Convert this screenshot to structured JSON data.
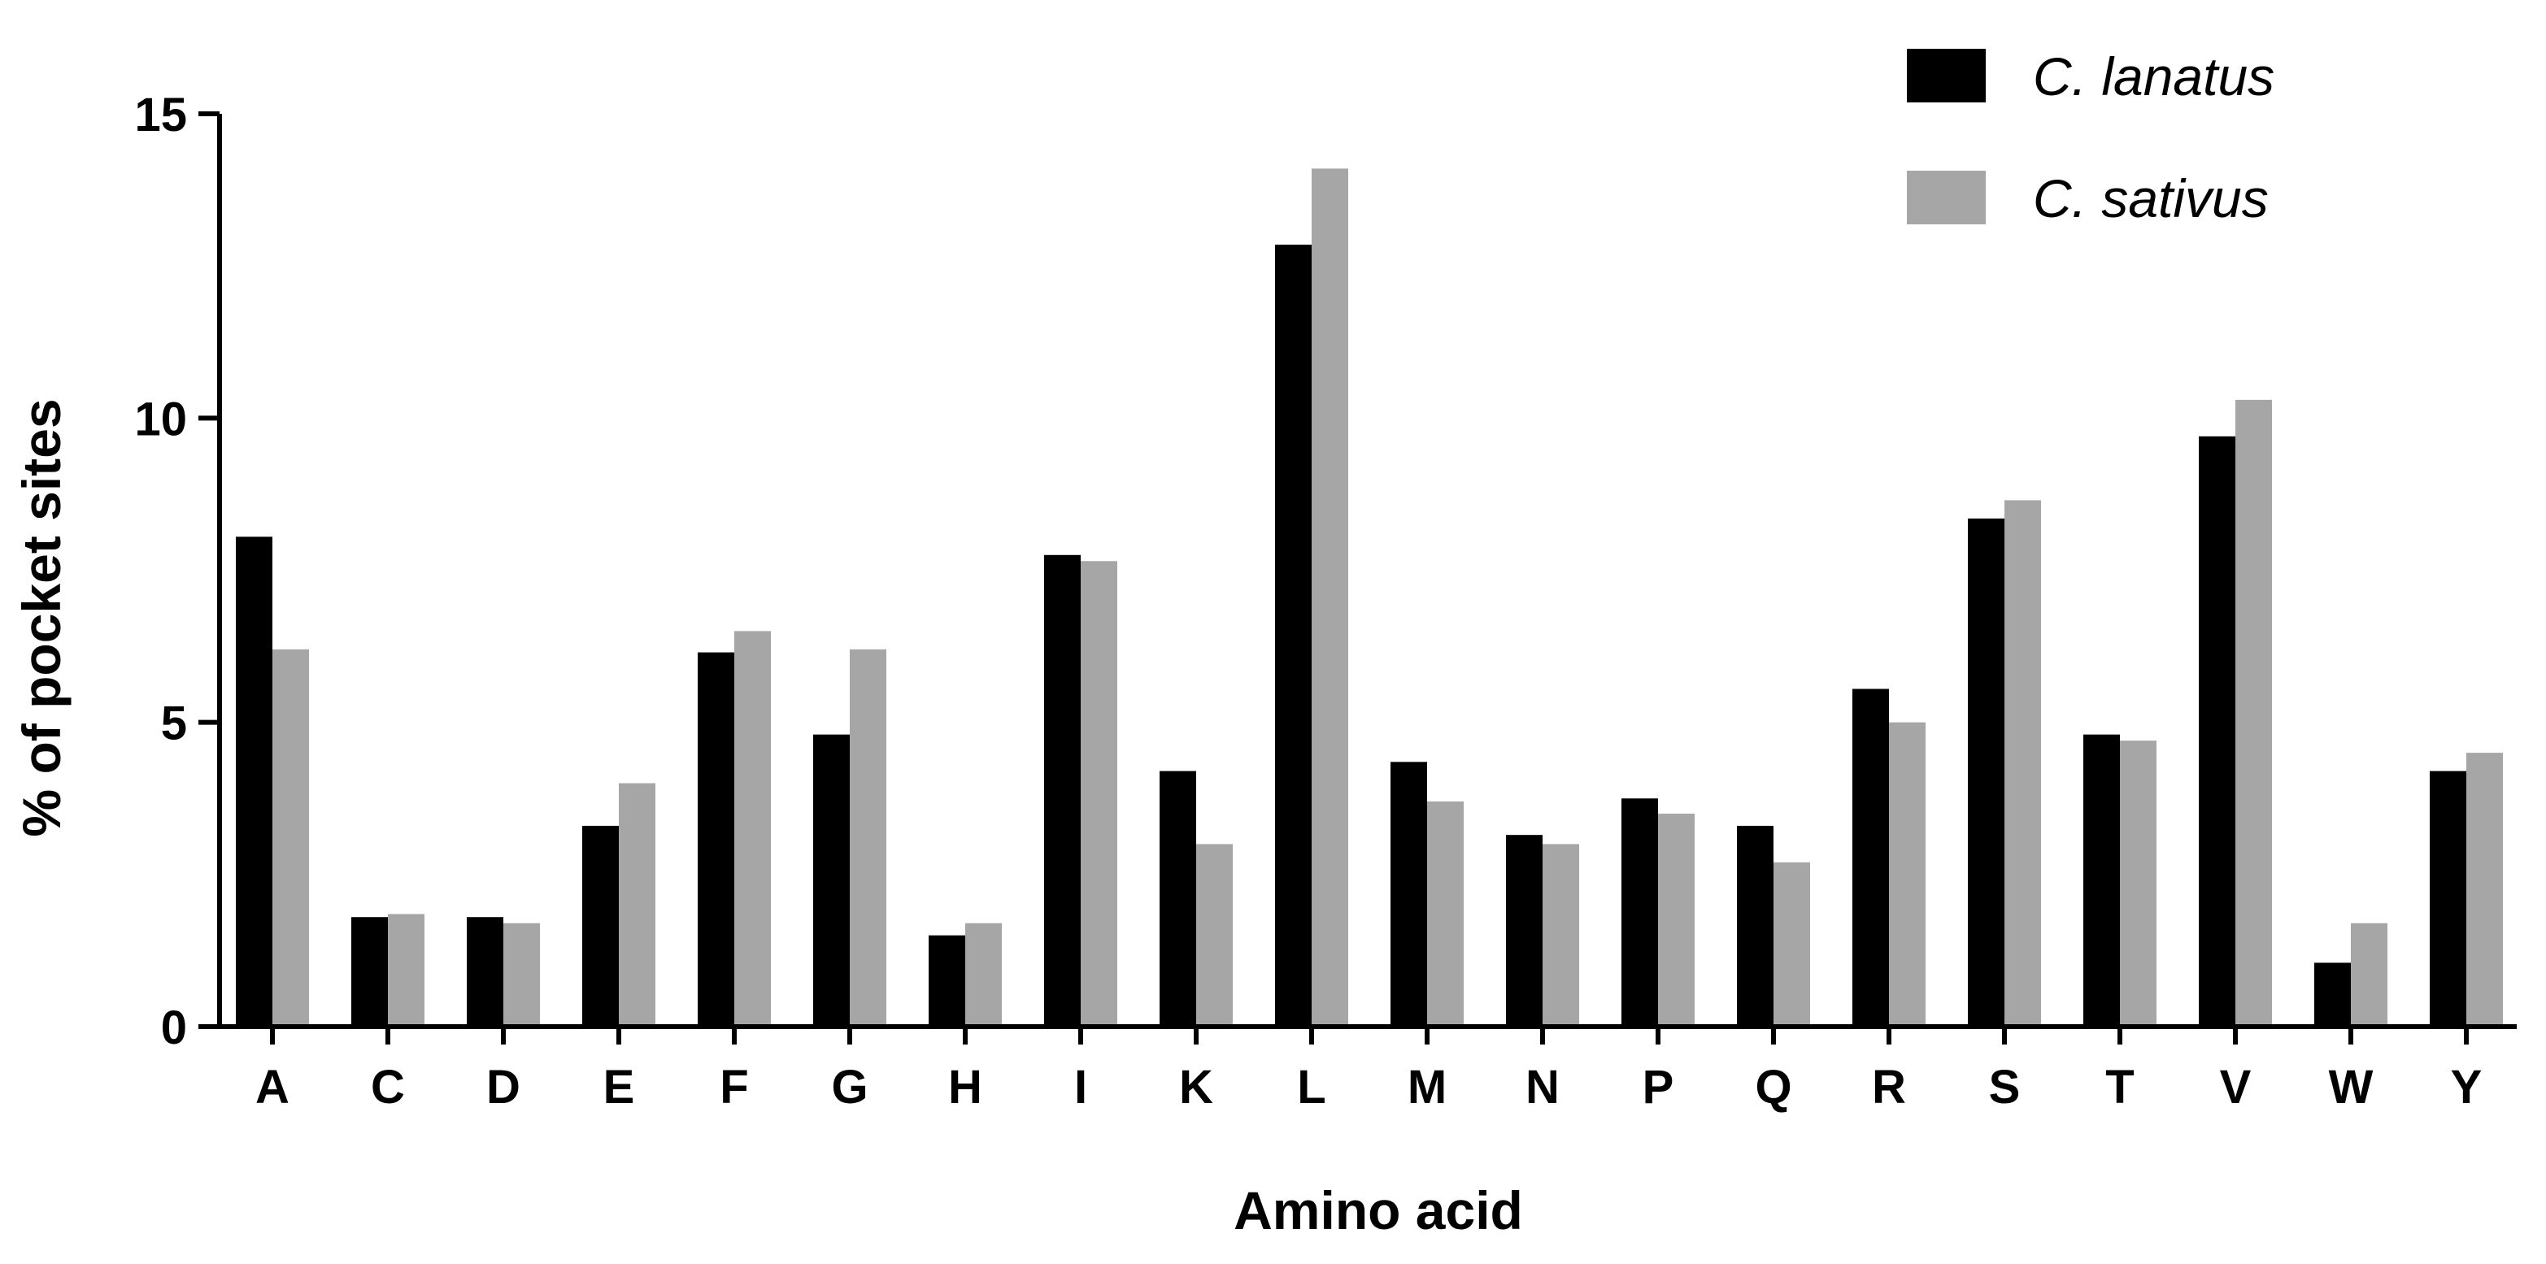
{
  "chart_data": {
    "type": "bar",
    "title": "",
    "xlabel": "Amino acid",
    "ylabel": "% of pocket sites",
    "ylim": [
      0,
      15
    ],
    "yticks": [
      "0",
      "5",
      "10",
      "15"
    ],
    "categories": [
      "A",
      "C",
      "D",
      "E",
      "F",
      "G",
      "H",
      "I",
      "K",
      "L",
      "M",
      "N",
      "P",
      "Q",
      "R",
      "S",
      "T",
      "V",
      "W",
      "Y"
    ],
    "series": [
      {
        "name": "C. lanatus",
        "color": "#000000",
        "values": [
          8.05,
          1.8,
          1.8,
          3.3,
          6.15,
          4.8,
          1.5,
          7.75,
          4.2,
          12.85,
          4.35,
          3.15,
          3.75,
          3.3,
          5.55,
          8.35,
          4.8,
          9.7,
          1.05,
          4.2
        ]
      },
      {
        "name": "C. sativus",
        "color": "#a6a6a6",
        "values": [
          6.2,
          1.85,
          1.7,
          4.0,
          6.5,
          6.2,
          1.7,
          7.65,
          3.0,
          14.1,
          3.7,
          3.0,
          3.5,
          2.7,
          5.0,
          8.65,
          4.7,
          10.3,
          1.7,
          4.5
        ]
      }
    ],
    "legend_position": "top-right",
    "grid": false
  }
}
